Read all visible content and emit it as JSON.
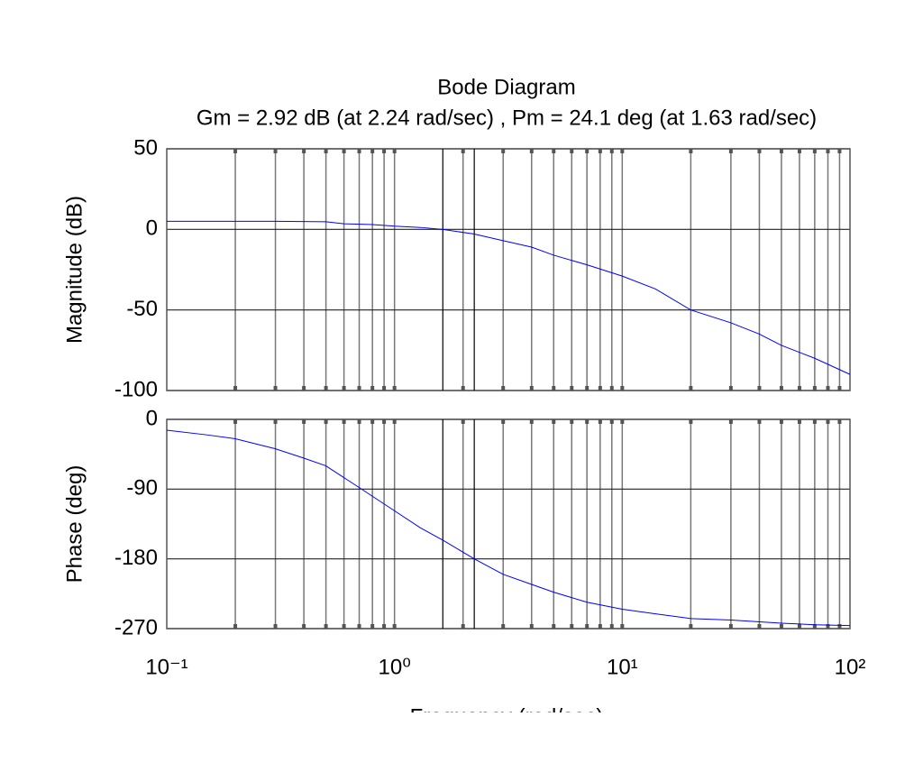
{
  "chart_data": [
    {
      "type": "line",
      "title": "Bode Diagram",
      "subtitle": "Gm = 2.92 dB (at 2.24 rad/sec) ,  Pm = 24.1 deg (at 1.63 rad/sec)",
      "y_label": "Magnitude (dB)",
      "xlim": [
        0.1,
        100
      ],
      "xscale": "log",
      "grid": true,
      "ylim": [
        -100,
        50
      ],
      "yticks": [
        -100,
        -50,
        0,
        50
      ],
      "vlines": [
        1.63,
        2.24
      ],
      "series": [
        {
          "color": "#0000ff",
          "x": [
            0.1,
            0.2,
            0.3,
            0.5,
            0.6,
            0.8,
            1,
            1.3,
            1.63,
            2.24,
            3,
            4,
            5,
            7,
            10,
            14,
            20,
            30,
            40,
            50,
            70,
            100
          ],
          "values": [
            5,
            5,
            5,
            4.7,
            3.5,
            3,
            2,
            1.2,
            0,
            -2.9,
            -7,
            -11,
            -16,
            -22,
            -29,
            -37,
            -50,
            -58,
            -65,
            -72,
            -80,
            -90
          ]
        }
      ]
    },
    {
      "type": "line",
      "y_label": "Phase (deg)",
      "x_label": "Frequency (rad/sec)",
      "xlim": [
        0.1,
        100
      ],
      "xscale": "log",
      "grid": true,
      "xticks": [
        {
          "value": 0.1,
          "label": "10⁻¹"
        },
        {
          "value": 1,
          "label": "10⁰"
        },
        {
          "value": 10,
          "label": "10¹"
        },
        {
          "value": 100,
          "label": "10²"
        }
      ],
      "ylim": [
        -270,
        0
      ],
      "yticks": [
        -270,
        -180,
        -90,
        0
      ],
      "vlines": [
        1.63,
        2.24
      ],
      "series": [
        {
          "color": "#0000ff",
          "x": [
            0.1,
            0.15,
            0.2,
            0.3,
            0.4,
            0.5,
            0.7,
            1,
            1.3,
            1.63,
            2.24,
            3,
            4,
            5,
            7,
            10,
            14,
            20,
            30,
            50,
            70,
            100
          ],
          "values": [
            -14,
            -20,
            -25,
            -38,
            -50,
            -60,
            -88,
            -118,
            -140,
            -155.9,
            -180,
            -200,
            -213,
            -223,
            -236,
            -245,
            -251,
            -257,
            -259,
            -263,
            -265,
            -266
          ]
        }
      ]
    }
  ]
}
